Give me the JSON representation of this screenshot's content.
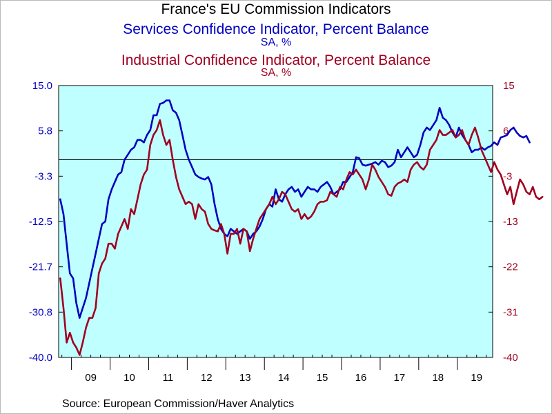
{
  "chart_data": {
    "type": "line",
    "title": "France's EU Commission Indicators",
    "source": "Source:  European Commission/Haver Analytics",
    "x_tick_labels": [
      "09",
      "10",
      "11",
      "12",
      "13",
      "14",
      "15",
      "16",
      "17",
      "18",
      "19"
    ],
    "x_range": [
      "2008-09",
      "2019-11"
    ],
    "left_axis": {
      "ticks": [
        "15.0",
        "5.8",
        "-3.3",
        "-12.5",
        "-21.7",
        "-30.8",
        "-40.0"
      ],
      "ylim": [
        -40.0,
        15.0
      ],
      "color": "#0000c0"
    },
    "right_axis": {
      "ticks": [
        "15",
        "6",
        "-3",
        "-13",
        "-22",
        "-31",
        "-40"
      ],
      "ylim": [
        -40,
        15
      ],
      "color": "#a00020"
    },
    "reference_line": 0,
    "grid": false,
    "series": [
      {
        "name": "Services Confidence Indicator, Percent Balance",
        "units": "SA, %",
        "axis": "left",
        "color": "#0000c0",
        "start": "2008-09",
        "values": [
          -8,
          -11,
          -17,
          -23,
          -24,
          -29,
          -32,
          -30,
          -28,
          -25,
          -22,
          -19,
          -16,
          -13,
          -12.5,
          -8,
          -6,
          -4.5,
          -3,
          -2.5,
          0,
          1,
          2,
          2.5,
          4,
          4,
          3.5,
          5,
          6,
          9,
          9,
          11.3,
          11.5,
          12,
          12,
          10,
          9.5,
          8,
          5,
          2,
          0,
          -1.5,
          -3,
          -3.5,
          -3.8,
          -4,
          -3.5,
          -5,
          -9,
          -12,
          -14,
          -15,
          -15.5,
          -14,
          -14.5,
          -15,
          -14.5,
          -14,
          -14.5,
          -16,
          -15,
          -14.5,
          -13.5,
          -12,
          -10,
          -9,
          -9.5,
          -6,
          -8,
          -8.5,
          -7,
          -6,
          -5.5,
          -6.5,
          -6,
          -7.5,
          -6.5,
          -5.5,
          -6,
          -6,
          -6.5,
          -5.5,
          -5,
          -4.5,
          -5.5,
          -7,
          -6.5,
          -6,
          -4.5,
          -4.5,
          -3.5,
          -2.5,
          0.5,
          0.3,
          -1,
          -1.2,
          -1,
          -0.8,
          -0.5,
          -1,
          -0.2,
          -0.5,
          -1.5,
          -1.2,
          -0.5,
          2,
          0.5,
          1.5,
          2.5,
          1.5,
          0.5,
          1,
          3,
          5.5,
          6.5,
          6,
          7,
          8,
          10.5,
          8.5,
          8,
          7,
          5.5,
          4.5,
          6.5,
          5,
          4,
          3,
          1.5,
          2,
          2,
          2.5,
          2,
          2.5,
          2.8,
          3.5,
          3,
          4.5,
          4.7,
          5,
          6,
          6.5,
          5.5,
          4.8,
          4.5,
          4.8,
          3.5
        ]
      },
      {
        "name": "Industrial Confidence Indicator, Percent Balance",
        "units": "SA, %",
        "axis": "right",
        "color": "#a00020",
        "start": "2008-09",
        "values": [
          -24,
          -30,
          -37,
          -35,
          -37,
          -38,
          -39.5,
          -37,
          -34,
          -32,
          -32,
          -30,
          -23,
          -21,
          -20,
          -17,
          -17,
          -18,
          -15,
          -13.5,
          -12,
          -14,
          -10,
          -11,
          -8,
          -5,
          -3,
          -2,
          3,
          5,
          6,
          8,
          5,
          3,
          4,
          0,
          -3.5,
          -6,
          -7.5,
          -9,
          -8.5,
          -9,
          -12,
          -9,
          -10,
          -10.5,
          -13,
          -14,
          -14.3,
          -14.5,
          -13,
          -15,
          -19,
          -15,
          -15,
          -14,
          -17,
          -14,
          -14.5,
          -18.5,
          -16,
          -14,
          -12,
          -11,
          -10,
          -9,
          -7.5,
          -9,
          -8,
          -6.5,
          -7,
          -8.5,
          -10,
          -10.5,
          -10,
          -12,
          -11,
          -12,
          -11.5,
          -10.5,
          -9,
          -8.5,
          -8.5,
          -8.2,
          -6.5,
          -7,
          -7.5,
          -5.5,
          -6,
          -4,
          -2.5,
          -3,
          -2,
          -3,
          -4,
          -6,
          -4,
          -1,
          -2,
          -3.5,
          -4.5,
          -5.5,
          -7,
          -7.3,
          -5.5,
          -4.8,
          -4.5,
          -4,
          -4.5,
          -2,
          -1,
          -0.5,
          -1.5,
          -2,
          -1,
          2,
          3,
          4,
          6,
          5,
          5,
          5.5,
          6,
          4.5,
          5,
          6,
          4,
          3,
          5,
          6.5,
          4.5,
          2,
          0.5,
          -1,
          -2.5,
          -0.5,
          -2,
          -3,
          -5,
          -7,
          -5.5,
          -9,
          -6.5,
          -4,
          -5,
          -6.5,
          -7,
          -5.5,
          -7.5,
          -8,
          -7.5
        ]
      }
    ]
  }
}
